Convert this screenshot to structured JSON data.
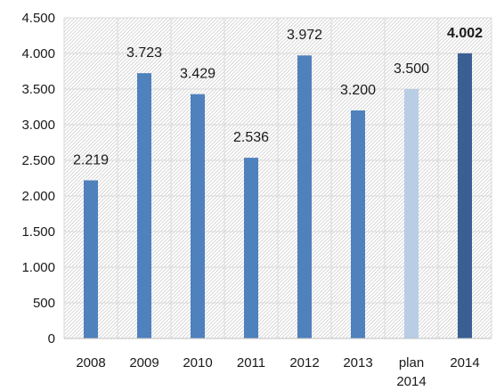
{
  "chart_data": {
    "type": "bar",
    "categories": [
      "2008",
      "2009",
      "2010",
      "2011",
      "2012",
      "2013",
      "plan 2014",
      "2014"
    ],
    "values": [
      2219,
      3723,
      3429,
      2536,
      3972,
      3200,
      3500,
      4002
    ],
    "data_labels": [
      "2.219",
      "3.723",
      "3.429",
      "2.536",
      "3.972",
      "3.200",
      "3.500",
      "4.002"
    ],
    "bold_labels": [
      false,
      false,
      false,
      false,
      false,
      false,
      false,
      true
    ],
    "bar_colors": [
      "#4f81bd",
      "#4f81bd",
      "#4f81bd",
      "#4f81bd",
      "#4f81bd",
      "#4f81bd",
      "#b9cde5",
      "#3a5f93"
    ],
    "ylim": [
      0,
      4500
    ],
    "yticks": [
      0,
      500,
      1000,
      1500,
      2000,
      2500,
      3000,
      3500,
      4000,
      4500
    ],
    "ytick_labels": [
      "0",
      "500",
      "1.000",
      "1.500",
      "2.000",
      "2.500",
      "3.000",
      "3.500",
      "4.000",
      "4.500"
    ],
    "grid": true,
    "plot_background": "hatched",
    "title": "",
    "xlabel": "",
    "ylabel": ""
  }
}
